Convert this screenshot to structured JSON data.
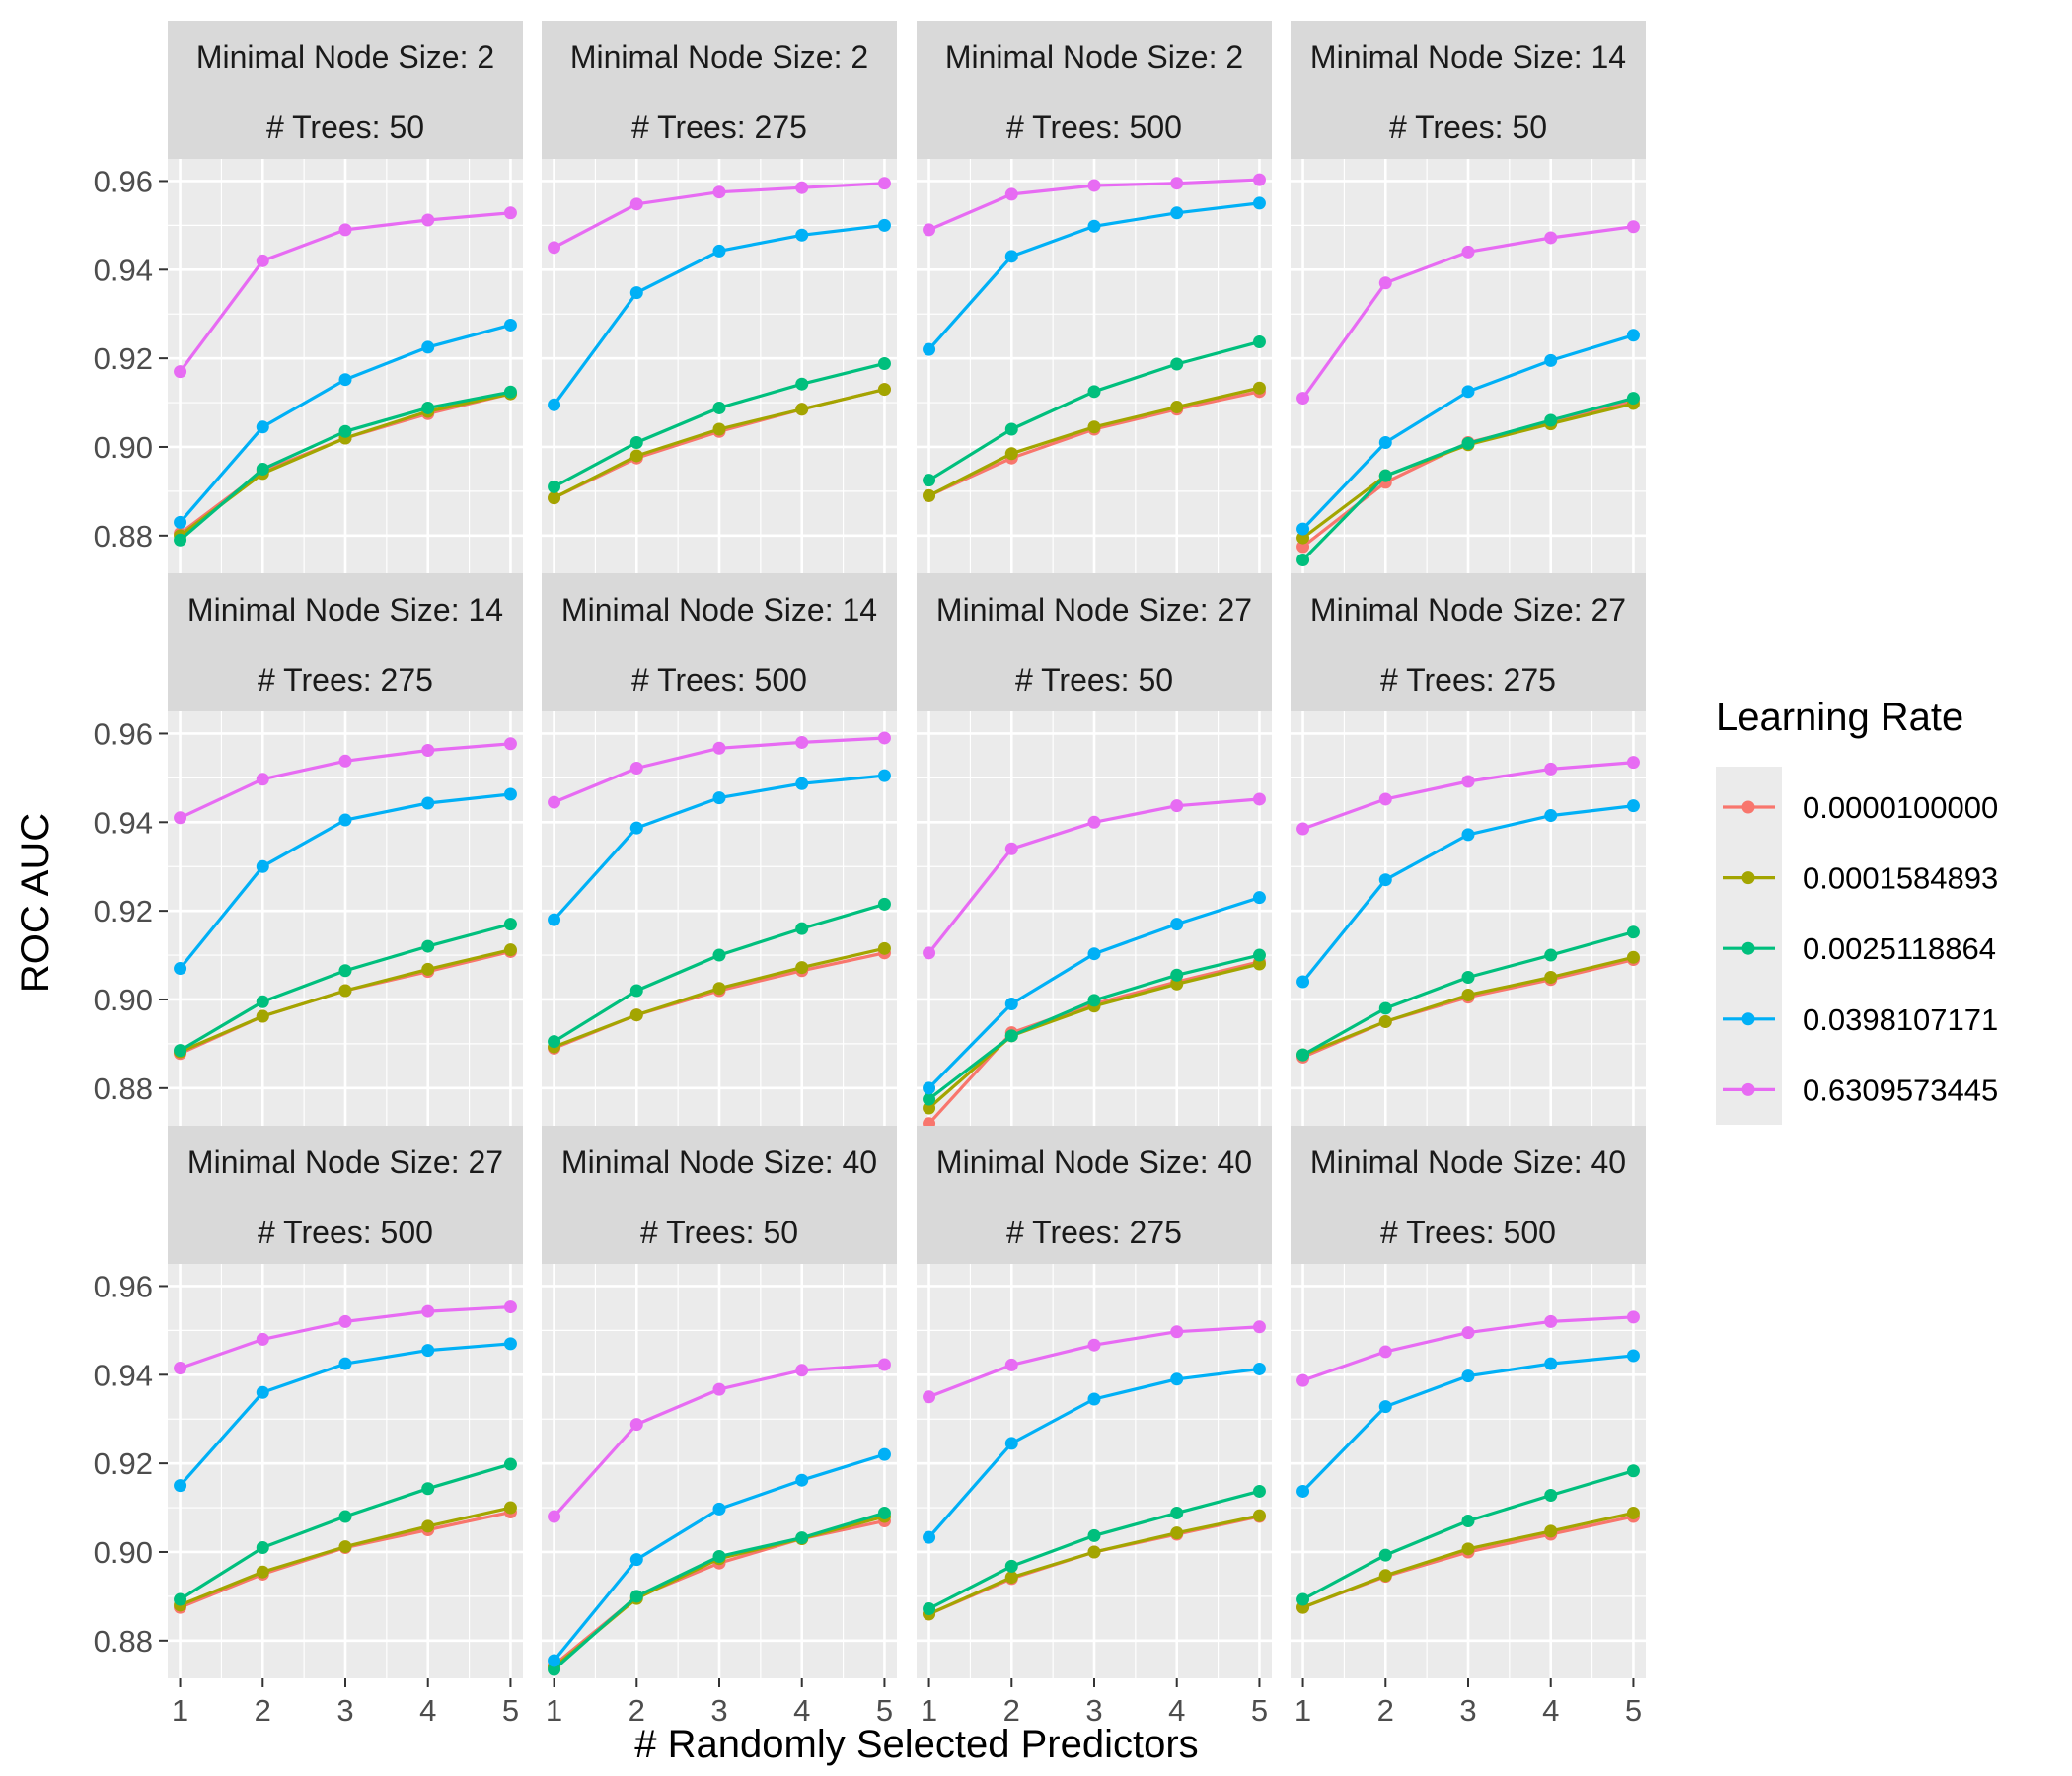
{
  "chart_data": {
    "type": "line",
    "xlabel": "# Randomly Selected Predictors",
    "ylabel": "ROC AUC",
    "x": [
      1,
      2,
      3,
      4,
      5
    ],
    "x_ticks": [
      "1",
      "2",
      "3",
      "4",
      "5"
    ],
    "ylim": [
      0.8715,
      0.965
    ],
    "y_ticks": [
      0.88,
      0.9,
      0.92,
      0.94,
      0.96
    ],
    "y_tick_labels": [
      "0.88",
      "0.90",
      "0.92",
      "0.94",
      "0.96"
    ],
    "legend": {
      "title": "Learning Rate",
      "placement": "right",
      "entries": [
        {
          "label": "0.0000100000",
          "color": "#F8766D"
        },
        {
          "label": "0.0001584893",
          "color": "#A3A500"
        },
        {
          "label": "0.0025118864",
          "color": "#00BF7D"
        },
        {
          "label": "0.0398107171",
          "color": "#00B0F6"
        },
        {
          "label": "0.6309573445",
          "color": "#E76BF3"
        }
      ]
    },
    "panels": [
      {
        "strip1": "Minimal Node Size: 2",
        "strip2": "# Trees: 50",
        "series": [
          [
            0.8805,
            0.8945,
            0.902,
            0.9075,
            0.912
          ],
          [
            0.88,
            0.894,
            0.902,
            0.908,
            0.912
          ],
          [
            0.879,
            0.895,
            0.9035,
            0.9088,
            0.9124
          ],
          [
            0.883,
            0.9045,
            0.9152,
            0.9225,
            0.9275
          ],
          [
            0.917,
            0.942,
            0.949,
            0.9512,
            0.9528
          ]
        ]
      },
      {
        "strip1": "Minimal Node Size: 2",
        "strip2": "# Trees: 275",
        "series": [
          [
            0.8885,
            0.8975,
            0.9035,
            0.9085,
            0.913
          ],
          [
            0.8885,
            0.898,
            0.904,
            0.9085,
            0.913
          ],
          [
            0.891,
            0.901,
            0.9088,
            0.9142,
            0.9188
          ],
          [
            0.9095,
            0.9348,
            0.9442,
            0.9478,
            0.95
          ],
          [
            0.945,
            0.9548,
            0.9575,
            0.9585,
            0.9595
          ]
        ]
      },
      {
        "strip1": "Minimal Node Size: 2",
        "strip2": "# Trees: 500",
        "series": [
          [
            0.889,
            0.8975,
            0.904,
            0.9085,
            0.9125
          ],
          [
            0.889,
            0.8985,
            0.9045,
            0.909,
            0.9133
          ],
          [
            0.8925,
            0.904,
            0.9125,
            0.9187,
            0.9237
          ],
          [
            0.922,
            0.943,
            0.9498,
            0.9528,
            0.955
          ],
          [
            0.949,
            0.957,
            0.959,
            0.9595,
            0.9603
          ]
        ]
      },
      {
        "strip1": "Minimal Node Size: 14",
        "strip2": "# Trees: 50",
        "series": [
          [
            0.8775,
            0.892,
            0.901,
            0.9055,
            0.9105
          ],
          [
            0.8795,
            0.8935,
            0.9005,
            0.9052,
            0.9098
          ],
          [
            0.8745,
            0.8935,
            0.9008,
            0.906,
            0.911
          ],
          [
            0.8815,
            0.901,
            0.9125,
            0.9195,
            0.9252
          ],
          [
            0.911,
            0.937,
            0.944,
            0.9472,
            0.9497
          ]
        ]
      },
      {
        "strip1": "Minimal Node Size: 14",
        "strip2": "# Trees: 275",
        "series": [
          [
            0.8878,
            0.8962,
            0.902,
            0.9063,
            0.9108
          ],
          [
            0.8882,
            0.8962,
            0.902,
            0.9068,
            0.9112
          ],
          [
            0.8885,
            0.8995,
            0.9065,
            0.912,
            0.917
          ],
          [
            0.907,
            0.93,
            0.9405,
            0.9443,
            0.9463
          ],
          [
            0.941,
            0.9497,
            0.9538,
            0.9562,
            0.9577
          ]
        ]
      },
      {
        "strip1": "Minimal Node Size: 14",
        "strip2": "# Trees: 500",
        "series": [
          [
            0.889,
            0.8965,
            0.902,
            0.9065,
            0.9105
          ],
          [
            0.8893,
            0.8965,
            0.9025,
            0.9072,
            0.9115
          ],
          [
            0.8905,
            0.902,
            0.91,
            0.916,
            0.9215
          ],
          [
            0.918,
            0.9387,
            0.9455,
            0.9487,
            0.9505
          ],
          [
            0.9445,
            0.9522,
            0.9567,
            0.958,
            0.959
          ]
        ]
      },
      {
        "strip1": "Minimal Node Size: 27",
        "strip2": "# Trees: 50",
        "series": [
          [
            0.872,
            0.8925,
            0.899,
            0.904,
            0.9085
          ],
          [
            0.8755,
            0.8918,
            0.8985,
            0.9035,
            0.908
          ],
          [
            0.8775,
            0.8918,
            0.8998,
            0.9055,
            0.91
          ],
          [
            0.88,
            0.899,
            0.9103,
            0.917,
            0.923
          ],
          [
            0.9105,
            0.934,
            0.94,
            0.9437,
            0.9452
          ]
        ]
      },
      {
        "strip1": "Minimal Node Size: 27",
        "strip2": "# Trees: 275",
        "series": [
          [
            0.887,
            0.895,
            0.9005,
            0.9045,
            0.909
          ],
          [
            0.8875,
            0.895,
            0.901,
            0.905,
            0.9095
          ],
          [
            0.8875,
            0.898,
            0.905,
            0.91,
            0.9152
          ],
          [
            0.904,
            0.927,
            0.9372,
            0.9415,
            0.9437
          ],
          [
            0.9385,
            0.9452,
            0.9492,
            0.952,
            0.9535
          ]
        ]
      },
      {
        "strip1": "Minimal Node Size: 27",
        "strip2": "# Trees: 500",
        "series": [
          [
            0.8875,
            0.895,
            0.901,
            0.905,
            0.909
          ],
          [
            0.888,
            0.8955,
            0.9012,
            0.9058,
            0.91
          ],
          [
            0.8893,
            0.901,
            0.908,
            0.9143,
            0.9198
          ],
          [
            0.915,
            0.936,
            0.9425,
            0.9455,
            0.947
          ],
          [
            0.9415,
            0.948,
            0.952,
            0.9543,
            0.9553
          ]
        ]
      },
      {
        "strip1": "Minimal Node Size: 40",
        "strip2": "# Trees: 50",
        "series": [
          [
            0.8745,
            0.8898,
            0.8975,
            0.903,
            0.907
          ],
          [
            0.874,
            0.8895,
            0.8985,
            0.903,
            0.908
          ],
          [
            0.8735,
            0.89,
            0.899,
            0.9032,
            0.9088
          ],
          [
            0.8755,
            0.8983,
            0.9097,
            0.9162,
            0.922
          ],
          [
            0.908,
            0.9288,
            0.9367,
            0.941,
            0.9423
          ]
        ]
      },
      {
        "strip1": "Minimal Node Size: 40",
        "strip2": "# Trees: 275",
        "series": [
          [
            0.886,
            0.894,
            0.9,
            0.904,
            0.908
          ],
          [
            0.886,
            0.8943,
            0.9,
            0.9043,
            0.9082
          ],
          [
            0.8872,
            0.8968,
            0.9037,
            0.9088,
            0.9137
          ],
          [
            0.9033,
            0.9245,
            0.9345,
            0.939,
            0.9413
          ],
          [
            0.935,
            0.9422,
            0.9467,
            0.9497,
            0.9508
          ]
        ]
      },
      {
        "strip1": "Minimal Node Size: 40",
        "strip2": "# Trees: 500",
        "series": [
          [
            0.8875,
            0.8945,
            0.9,
            0.904,
            0.908
          ],
          [
            0.8875,
            0.8947,
            0.9007,
            0.9047,
            0.9088
          ],
          [
            0.8893,
            0.8993,
            0.907,
            0.9128,
            0.9183
          ],
          [
            0.9137,
            0.9328,
            0.9397,
            0.9425,
            0.9443
          ],
          [
            0.9387,
            0.9452,
            0.9495,
            0.952,
            0.953
          ]
        ]
      }
    ]
  }
}
